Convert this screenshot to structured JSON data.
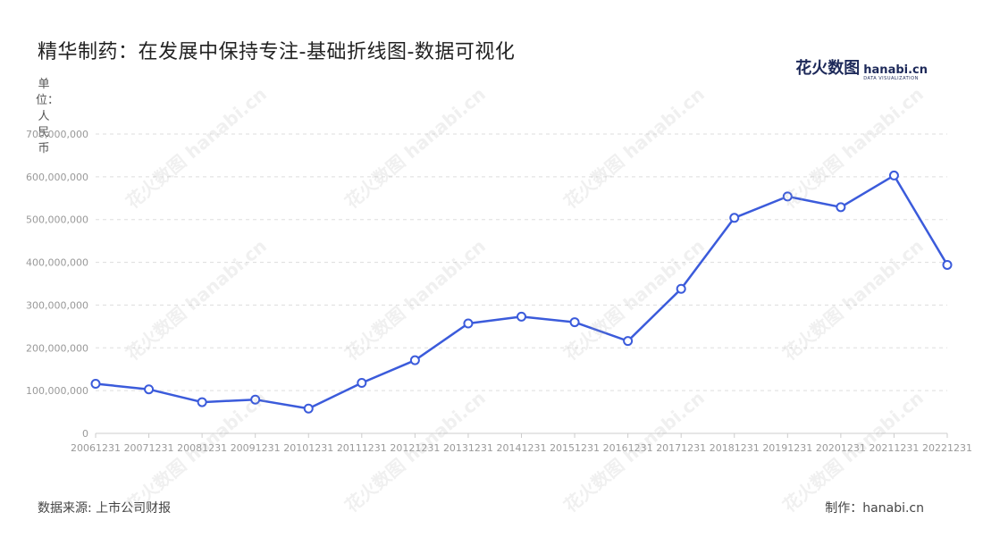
{
  "page": {
    "title": "精华制药：在发展中保持专注-基础折线图-数据可视化",
    "unit_label": "单位：人民币",
    "source": "数据来源: 上市公司财报",
    "maker": "制作：hanabi.cn",
    "logo_cn": "花火数图",
    "logo_en": "hanabi.cn",
    "logo_sub": "DATA VISUALIZATION",
    "watermark": "花火数图 hanabi.cn"
  },
  "colors": {
    "line": "#3b5bdb",
    "grid": "#dddddd",
    "axis_text": "#999999"
  },
  "chart_data": {
    "type": "line",
    "title": "精华制药：在发展中保持专注-基础折线图-数据可视化",
    "ylabel": "单位：人民币",
    "xlabel": "",
    "ylim": [
      0,
      700000000
    ],
    "yticks": [
      0,
      100000000,
      200000000,
      300000000,
      400000000,
      500000000,
      600000000,
      700000000
    ],
    "ytick_labels": [
      "0",
      "100,000,000",
      "200,000,000",
      "300,000,000",
      "400,000,000",
      "500,000,000",
      "600,000,000",
      "700,000,000"
    ],
    "grid": true,
    "categories": [
      "20061231",
      "20071231",
      "20081231",
      "20091231",
      "20101231",
      "20111231",
      "20121231",
      "20131231",
      "20141231",
      "20151231",
      "20161231",
      "20171231",
      "20181231",
      "20191231",
      "20201231",
      "20211231",
      "20221231"
    ],
    "values": [
      116000000,
      103000000,
      73000000,
      79000000,
      58000000,
      118000000,
      171000000,
      257000000,
      273000000,
      260000000,
      216000000,
      338000000,
      504000000,
      554000000,
      529000000,
      603000000,
      394000000
    ]
  }
}
